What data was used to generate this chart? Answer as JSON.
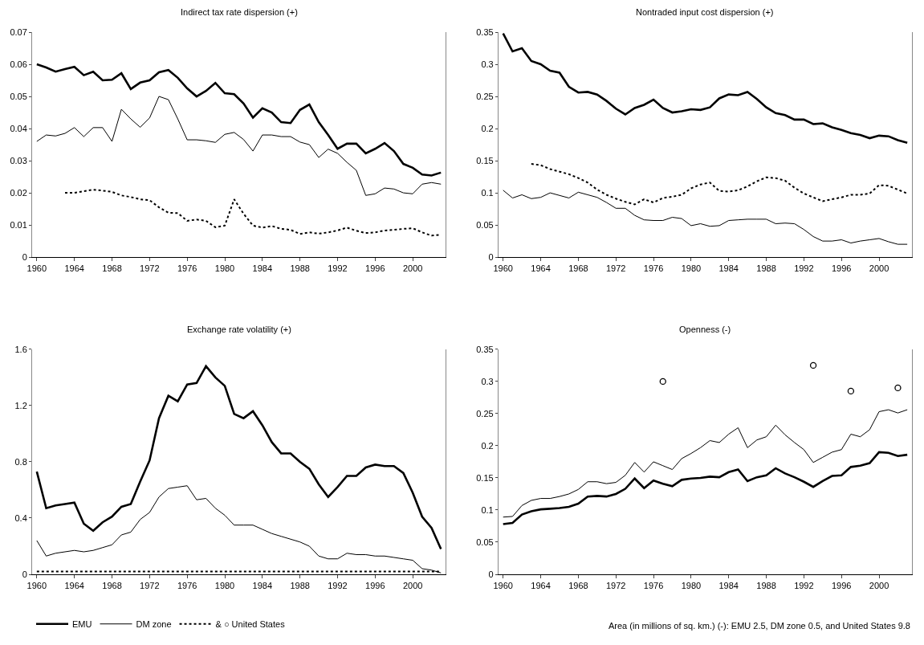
{
  "chart_data": [
    {
      "type": "line",
      "title": "Indirect tax rate dispersion (+)",
      "x": [
        1960,
        1961,
        1962,
        1963,
        1964,
        1965,
        1966,
        1967,
        1968,
        1969,
        1970,
        1971,
        1972,
        1973,
        1974,
        1975,
        1976,
        1977,
        1978,
        1979,
        1980,
        1981,
        1982,
        1983,
        1984,
        1985,
        1986,
        1987,
        1988,
        1989,
        1990,
        1991,
        1992,
        1993,
        1994,
        1995,
        1996,
        1997,
        1998,
        1999,
        2000,
        2001,
        2002,
        2003
      ],
      "xlim": [
        1959.5,
        2003.5
      ],
      "xticks": [
        1960,
        1964,
        1968,
        1972,
        1976,
        1980,
        1984,
        1988,
        1992,
        1996,
        2000
      ],
      "ylim": [
        0,
        0.07
      ],
      "yticks": [
        0,
        0.01,
        0.02,
        0.03,
        0.04,
        0.05,
        0.06,
        0.07
      ],
      "grid": false,
      "series": [
        {
          "color": "#000000",
          "line_style": "solid",
          "values": [
            0.06,
            0.059,
            0.0577,
            0.0585,
            0.0592,
            0.0566,
            0.0577,
            0.055,
            0.0552,
            0.0572,
            0.0523,
            0.0543,
            0.055,
            0.0575,
            0.0582,
            0.0558,
            0.0525,
            0.05,
            0.0517,
            0.0542,
            0.051,
            0.0507,
            0.0478,
            0.0434,
            0.0463,
            0.045,
            0.042,
            0.0417,
            0.0458,
            0.0475,
            0.042,
            0.038,
            0.0337,
            0.0353,
            0.0353,
            0.0323,
            0.0337,
            0.0355,
            0.033,
            0.029,
            0.0278,
            0.0257,
            0.0254,
            0.0263
          ]
        },
        {
          "color": "#000000",
          "line_style": "solid",
          "values": [
            0.036,
            0.038,
            0.0377,
            0.0385,
            0.0403,
            0.0375,
            0.0403,
            0.0403,
            0.036,
            0.046,
            0.043,
            0.0404,
            0.0433,
            0.05,
            0.049,
            0.043,
            0.0365,
            0.0365,
            0.0362,
            0.0357,
            0.0382,
            0.0388,
            0.0366,
            0.033,
            0.038,
            0.038,
            0.0375,
            0.0375,
            0.0358,
            0.035,
            0.031,
            0.0336,
            0.0323,
            0.0295,
            0.027,
            0.0192,
            0.0197,
            0.0215,
            0.0212,
            0.02,
            0.0197,
            0.0227,
            0.0232,
            0.0227
          ]
        },
        {
          "color": "#000000",
          "line_style": "dotted",
          "values": [
            null,
            null,
            null,
            0.02,
            0.02,
            0.0205,
            0.021,
            0.0207,
            0.0203,
            0.0192,
            0.0187,
            0.018,
            0.0177,
            0.0155,
            0.0138,
            0.0137,
            0.0113,
            0.0117,
            0.0113,
            0.0093,
            0.0098,
            0.018,
            0.0135,
            0.0098,
            0.0092,
            0.0097,
            0.0088,
            0.0085,
            0.0072,
            0.0077,
            0.0073,
            0.0077,
            0.0083,
            0.0092,
            0.0082,
            0.0075,
            0.0077,
            0.0083,
            0.0085,
            0.0088,
            0.009,
            0.0077,
            0.0067,
            0.007
          ]
        }
      ]
    },
    {
      "type": "line",
      "title": "Nontraded input cost dispersion (+)",
      "x": [
        1960,
        1961,
        1962,
        1963,
        1964,
        1965,
        1966,
        1967,
        1968,
        1969,
        1970,
        1971,
        1972,
        1973,
        1974,
        1975,
        1976,
        1977,
        1978,
        1979,
        1980,
        1981,
        1982,
        1983,
        1984,
        1985,
        1986,
        1987,
        1988,
        1989,
        1990,
        1991,
        1992,
        1993,
        1994,
        1995,
        1996,
        1997,
        1998,
        1999,
        2000,
        2001,
        2002,
        2003
      ],
      "xlim": [
        1959.5,
        2003.5
      ],
      "xticks": [
        1960,
        1964,
        1968,
        1972,
        1976,
        1980,
        1984,
        1988,
        1992,
        1996,
        2000
      ],
      "ylim": [
        0,
        0.35
      ],
      "yticks": [
        0,
        0.05,
        0.1,
        0.15,
        0.2,
        0.25,
        0.3,
        0.35
      ],
      "grid": false,
      "series": [
        {
          "color": "#000000",
          "line_style": "solid",
          "values": [
            0.348,
            0.32,
            0.325,
            0.305,
            0.3,
            0.29,
            0.287,
            0.265,
            0.256,
            0.257,
            0.253,
            0.243,
            0.231,
            0.222,
            0.232,
            0.237,
            0.245,
            0.232,
            0.225,
            0.227,
            0.23,
            0.229,
            0.233,
            0.247,
            0.253,
            0.252,
            0.257,
            0.246,
            0.233,
            0.224,
            0.221,
            0.214,
            0.214,
            0.207,
            0.208,
            0.202,
            0.198,
            0.193,
            0.19,
            0.185,
            0.189,
            0.188,
            0.182,
            0.178
          ]
        },
        {
          "color": "#000000",
          "line_style": "solid",
          "values": [
            0.104,
            0.092,
            0.097,
            0.091,
            0.093,
            0.1,
            0.096,
            0.092,
            0.101,
            0.097,
            0.093,
            0.085,
            0.076,
            0.076,
            0.065,
            0.058,
            0.057,
            0.057,
            0.062,
            0.06,
            0.049,
            0.052,
            0.048,
            0.049,
            0.057,
            0.058,
            0.059,
            0.059,
            0.059,
            0.052,
            0.053,
            0.052,
            0.043,
            0.032,
            0.025,
            0.025,
            0.027,
            0.022,
            0.025,
            0.027,
            0.029,
            0.024,
            0.02,
            0.02
          ]
        },
        {
          "color": "#000000",
          "line_style": "dotted",
          "values": [
            null,
            null,
            null,
            0.145,
            0.143,
            0.137,
            0.133,
            0.129,
            0.123,
            0.116,
            0.105,
            0.097,
            0.091,
            0.086,
            0.082,
            0.09,
            0.085,
            0.092,
            0.094,
            0.097,
            0.107,
            0.113,
            0.116,
            0.103,
            0.102,
            0.104,
            0.11,
            0.118,
            0.124,
            0.123,
            0.119,
            0.108,
            0.099,
            0.093,
            0.087,
            0.09,
            0.093,
            0.097,
            0.097,
            0.099,
            0.112,
            0.111,
            0.105,
            0.099
          ]
        }
      ]
    },
    {
      "type": "line",
      "title": "Exchange rate volatility (+)",
      "x": [
        1960,
        1961,
        1962,
        1963,
        1964,
        1965,
        1966,
        1967,
        1968,
        1969,
        1970,
        1971,
        1972,
        1973,
        1974,
        1975,
        1976,
        1977,
        1978,
        1979,
        1980,
        1981,
        1982,
        1983,
        1984,
        1985,
        1986,
        1987,
        1988,
        1989,
        1990,
        1991,
        1992,
        1993,
        1994,
        1995,
        1996,
        1997,
        1998,
        1999,
        2000,
        2001,
        2002,
        2003
      ],
      "xlim": [
        1959.5,
        2003.5
      ],
      "xticks": [
        1960,
        1964,
        1968,
        1972,
        1976,
        1980,
        1984,
        1988,
        1992,
        1996,
        2000
      ],
      "ylim": [
        0,
        1.6
      ],
      "yticks": [
        0,
        0.4,
        0.8,
        1.2,
        1.6
      ],
      "grid": false,
      "legend": "bottom",
      "series": [
        {
          "name": "EMU",
          "color": "#000000",
          "line_style": "solid",
          "values": [
            0.73,
            0.47,
            0.49,
            0.5,
            0.51,
            0.36,
            0.31,
            0.37,
            0.41,
            0.48,
            0.5,
            0.66,
            0.81,
            1.11,
            1.27,
            1.23,
            1.35,
            1.36,
            1.48,
            1.4,
            1.34,
            1.14,
            1.11,
            1.16,
            1.06,
            0.94,
            0.86,
            0.86,
            0.8,
            0.75,
            0.64,
            0.55,
            0.62,
            0.7,
            0.7,
            0.76,
            0.78,
            0.77,
            0.77,
            0.72,
            0.58,
            0.41,
            0.33,
            0.18
          ]
        },
        {
          "name": "DM zone",
          "color": "#000000",
          "line_style": "solid",
          "values": [
            0.24,
            0.13,
            0.15,
            0.16,
            0.17,
            0.16,
            0.17,
            0.19,
            0.21,
            0.28,
            0.3,
            0.39,
            0.44,
            0.55,
            0.61,
            0.62,
            0.63,
            0.53,
            0.54,
            0.47,
            0.42,
            0.35,
            0.35,
            0.35,
            0.32,
            0.29,
            0.27,
            0.25,
            0.23,
            0.2,
            0.13,
            0.11,
            0.11,
            0.15,
            0.14,
            0.14,
            0.13,
            0.13,
            0.12,
            0.11,
            0.1,
            0.04,
            0.03,
            0.01
          ]
        },
        {
          "name": "& ○ United States",
          "color": "#000000",
          "line_style": "dotted",
          "values": [
            0.02,
            0.02,
            0.02,
            0.02,
            0.02,
            0.02,
            0.02,
            0.02,
            0.02,
            0.02,
            0.02,
            0.02,
            0.02,
            0.02,
            0.02,
            0.02,
            0.02,
            0.02,
            0.02,
            0.02,
            0.02,
            0.02,
            0.02,
            0.02,
            0.02,
            0.02,
            0.02,
            0.02,
            0.02,
            0.02,
            0.02,
            0.02,
            0.02,
            0.02,
            0.02,
            0.02,
            0.02,
            0.02,
            0.02,
            0.02,
            0.02,
            0.02,
            0.02,
            0.02
          ]
        }
      ]
    },
    {
      "type": "line",
      "title": "Openness (-)",
      "x": [
        1960,
        1961,
        1962,
        1963,
        1964,
        1965,
        1966,
        1967,
        1968,
        1969,
        1970,
        1971,
        1972,
        1973,
        1974,
        1975,
        1976,
        1977,
        1978,
        1979,
        1980,
        1981,
        1982,
        1983,
        1984,
        1985,
        1986,
        1987,
        1988,
        1989,
        1990,
        1991,
        1992,
        1993,
        1994,
        1995,
        1996,
        1997,
        1998,
        1999,
        2000,
        2001,
        2002,
        2003
      ],
      "xlim": [
        1959.5,
        2003.5
      ],
      "xticks": [
        1960,
        1964,
        1968,
        1972,
        1976,
        1980,
        1984,
        1988,
        1992,
        1996,
        2000
      ],
      "ylim": [
        0,
        0.35
      ],
      "yticks": [
        0,
        0.05,
        0.1,
        0.15,
        0.2,
        0.25,
        0.3,
        0.35
      ],
      "grid": false,
      "annotations": [
        "Area (in millions of sq. km.) (-): EMU 2.5, DM zone 0.5, and United States 9.8"
      ],
      "series": [
        {
          "color": "#000000",
          "line_style": "solid",
          "values": [
            0.078,
            0.08,
            0.093,
            0.098,
            0.101,
            0.102,
            0.103,
            0.105,
            0.11,
            0.121,
            0.122,
            0.121,
            0.125,
            0.133,
            0.149,
            0.134,
            0.146,
            0.141,
            0.137,
            0.147,
            0.149,
            0.15,
            0.152,
            0.151,
            0.159,
            0.163,
            0.145,
            0.151,
            0.154,
            0.165,
            0.157,
            0.151,
            0.144,
            0.136,
            0.145,
            0.153,
            0.154,
            0.167,
            0.169,
            0.173,
            0.19,
            0.189,
            0.184,
            0.186
          ]
        },
        {
          "color": "#000000",
          "line_style": "solid",
          "values": [
            0.089,
            0.09,
            0.107,
            0.115,
            0.118,
            0.118,
            0.121,
            0.125,
            0.132,
            0.144,
            0.144,
            0.141,
            0.143,
            0.154,
            0.174,
            0.159,
            0.175,
            0.169,
            0.163,
            0.18,
            0.188,
            0.197,
            0.208,
            0.205,
            0.218,
            0.228,
            0.197,
            0.209,
            0.214,
            0.232,
            0.217,
            0.205,
            0.194,
            0.174,
            0.182,
            0.19,
            0.194,
            0.218,
            0.214,
            0.225,
            0.253,
            0.256,
            0.251,
            0.256
          ]
        },
        {
          "type": "scatter",
          "marker": "circle",
          "color": "#000000",
          "x": [
            1977,
            1993,
            1997,
            2002
          ],
          "values": [
            0.3,
            0.325,
            0.285,
            0.29
          ]
        }
      ]
    }
  ]
}
